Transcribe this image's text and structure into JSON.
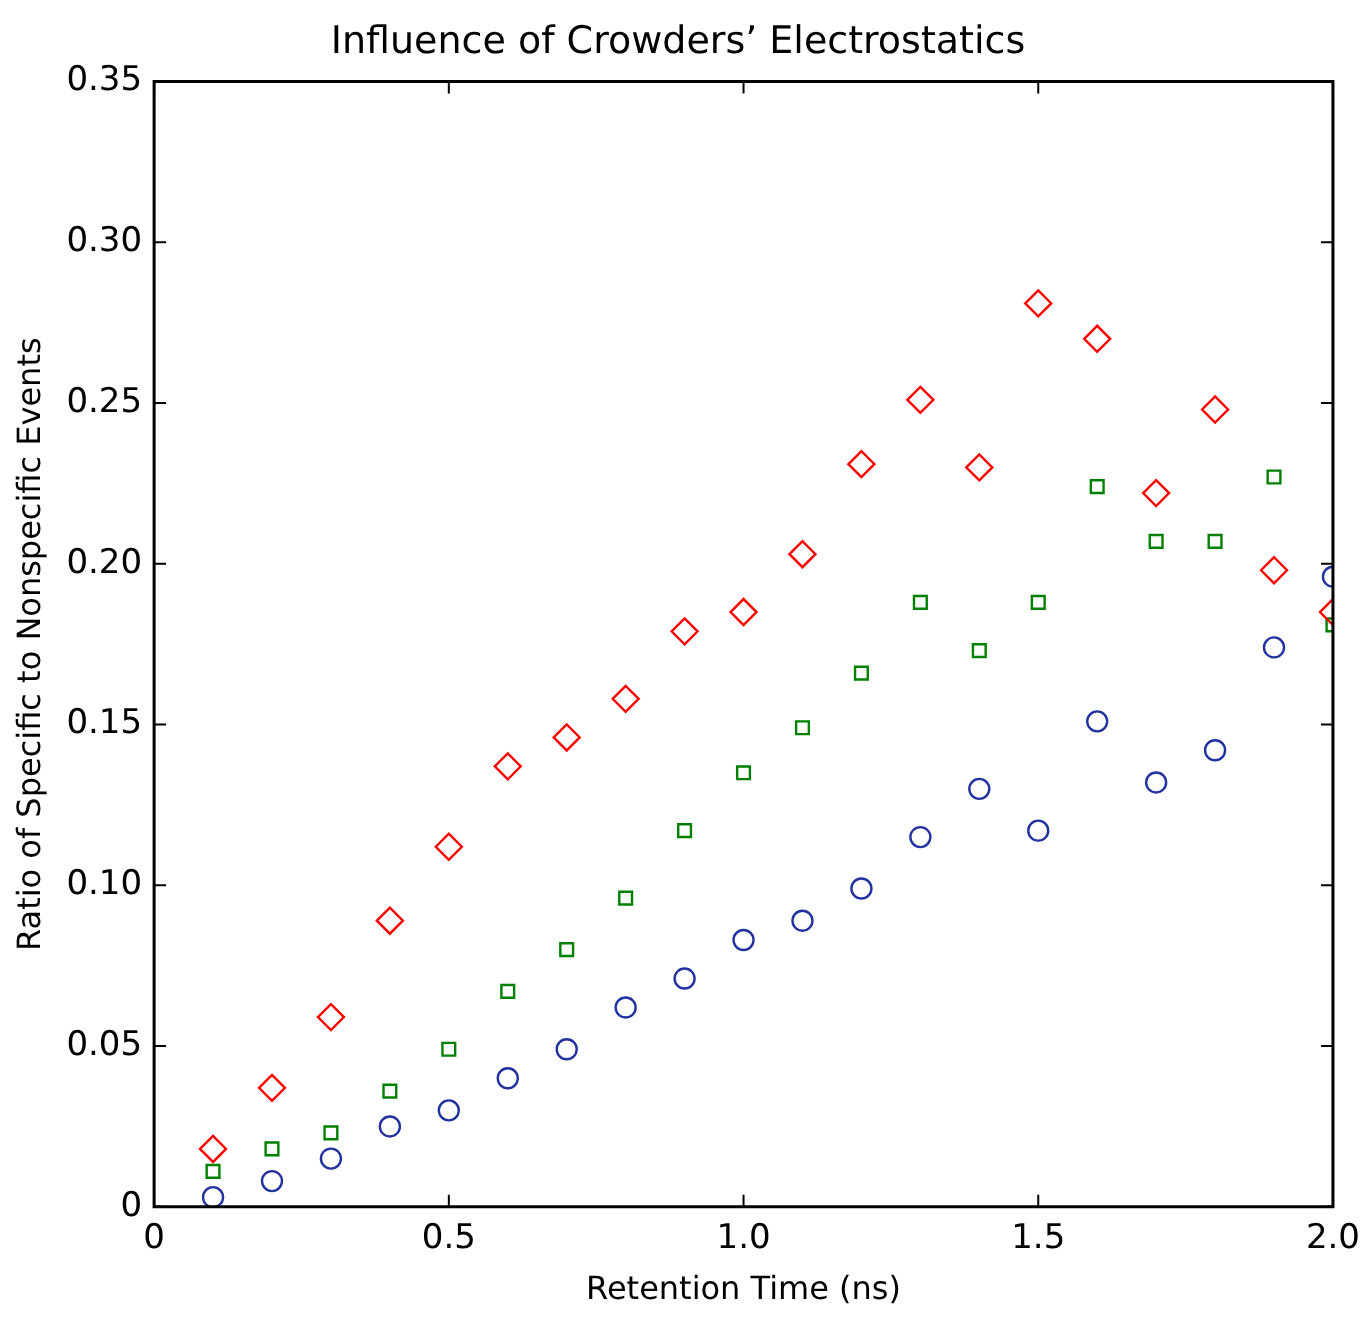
{
  "chart_data": {
    "type": "scatter",
    "title": "Influence of Crowders’ Electrostatics",
    "xlabel": "Retention Time (ns)",
    "ylabel": "Ratio of Specific to Nonspecific Events",
    "x": [
      0.1,
      0.2,
      0.3,
      0.4,
      0.5,
      0.6,
      0.7,
      0.8,
      0.9,
      1.0,
      1.1,
      1.2,
      1.3,
      1.4,
      1.5,
      1.6,
      1.7,
      1.8,
      1.9,
      2.0
    ],
    "series": [
      {
        "color": "#ff0000",
        "marker": "diamond",
        "values": [
          0.018,
          0.037,
          0.059,
          0.089,
          0.112,
          0.137,
          0.146,
          0.158,
          0.179,
          0.185,
          0.203,
          0.231,
          0.251,
          0.23,
          0.281,
          0.27,
          0.222,
          0.248,
          0.198,
          0.185
        ]
      },
      {
        "color": "#008000",
        "marker": "square",
        "values": [
          0.011,
          0.018,
          0.023,
          0.036,
          0.049,
          0.067,
          0.08,
          0.096,
          0.117,
          0.135,
          0.149,
          0.166,
          0.188,
          0.173,
          0.188,
          0.224,
          0.207,
          0.207,
          0.227,
          0.181
        ]
      },
      {
        "color": "#2233a0",
        "marker": "circle",
        "values": [
          0.003,
          0.008,
          0.015,
          0.025,
          0.03,
          0.04,
          0.049,
          0.062,
          0.071,
          0.083,
          0.089,
          0.099,
          0.115,
          0.13,
          0.117,
          0.151,
          0.132,
          0.142,
          0.174,
          0.196
        ]
      }
    ],
    "xlim": [
      0,
      2
    ],
    "xticks": [
      0,
      {
        "value": 0.5,
        "label": "0.5"
      },
      {
        "value": 1,
        "label": "1.0"
      },
      {
        "value": 1.5,
        "label": "1.5"
      },
      {
        "value": 2,
        "label": "2.0"
      }
    ],
    "ylim": [
      0,
      0.35
    ],
    "yticks": [
      0,
      {
        "value": 0.05,
        "label": "0.05"
      },
      {
        "value": 0.1,
        "label": "0.10"
      },
      {
        "value": 0.15,
        "label": "0.15"
      },
      {
        "value": 0.2,
        "label": "0.20"
      },
      {
        "value": 0.25,
        "label": "0.25"
      },
      {
        "value": 0.3,
        "label": "0.30"
      },
      {
        "value": 0.35,
        "label": "0.35"
      }
    ]
  }
}
